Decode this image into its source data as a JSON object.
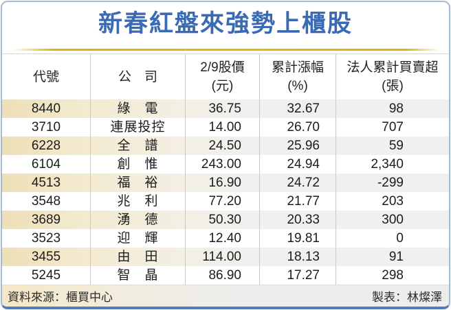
{
  "title": "新春紅盤來強勢上櫃股",
  "footer": {
    "source": "資料來源：櫃買中心",
    "credit": "製表：林燦澤"
  },
  "colors": {
    "title_blue": "#3b6ab5",
    "gold": "#e6b800",
    "border_blue": "#4f7eba",
    "border_light": "#a4b9d4",
    "stripe_cream": "#eedfb6",
    "stripe_gray": "#eff0f2"
  },
  "chart_data": {
    "type": "table",
    "title": "新春紅盤來強勢上櫃股",
    "columns": [
      {
        "label": "代號",
        "unit": ""
      },
      {
        "label": "公　司",
        "unit": ""
      },
      {
        "label": "2/9股價",
        "unit": "(元)"
      },
      {
        "label": "累計漲幅",
        "unit": "(%)"
      },
      {
        "label": "法人累計買賣超",
        "unit": "(張)"
      }
    ],
    "rows": [
      {
        "code": "8440",
        "company": "綠　電",
        "price": "36.75",
        "gain": "32.67",
        "net": "98"
      },
      {
        "code": "3710",
        "company": "連展投控",
        "price": "14.00",
        "gain": "26.70",
        "net": "707"
      },
      {
        "code": "6228",
        "company": "全　譜",
        "price": "24.50",
        "gain": "25.96",
        "net": "59"
      },
      {
        "code": "6104",
        "company": "創　惟",
        "price": "243.00",
        "gain": "24.94",
        "net": "2,340"
      },
      {
        "code": "4513",
        "company": "福　裕",
        "price": "16.90",
        "gain": "24.72",
        "net": "-299"
      },
      {
        "code": "3548",
        "company": "兆　利",
        "price": "77.20",
        "gain": "21.77",
        "net": "203"
      },
      {
        "code": "3689",
        "company": "湧　德",
        "price": "50.30",
        "gain": "20.33",
        "net": "300"
      },
      {
        "code": "3523",
        "company": "迎　輝",
        "price": "12.40",
        "gain": "19.81",
        "net": "0"
      },
      {
        "code": "3455",
        "company": "由　田",
        "price": "114.00",
        "gain": "18.13",
        "net": "91"
      },
      {
        "code": "5245",
        "company": "智　晶",
        "price": "86.90",
        "gain": "17.27",
        "net": "298"
      }
    ]
  }
}
